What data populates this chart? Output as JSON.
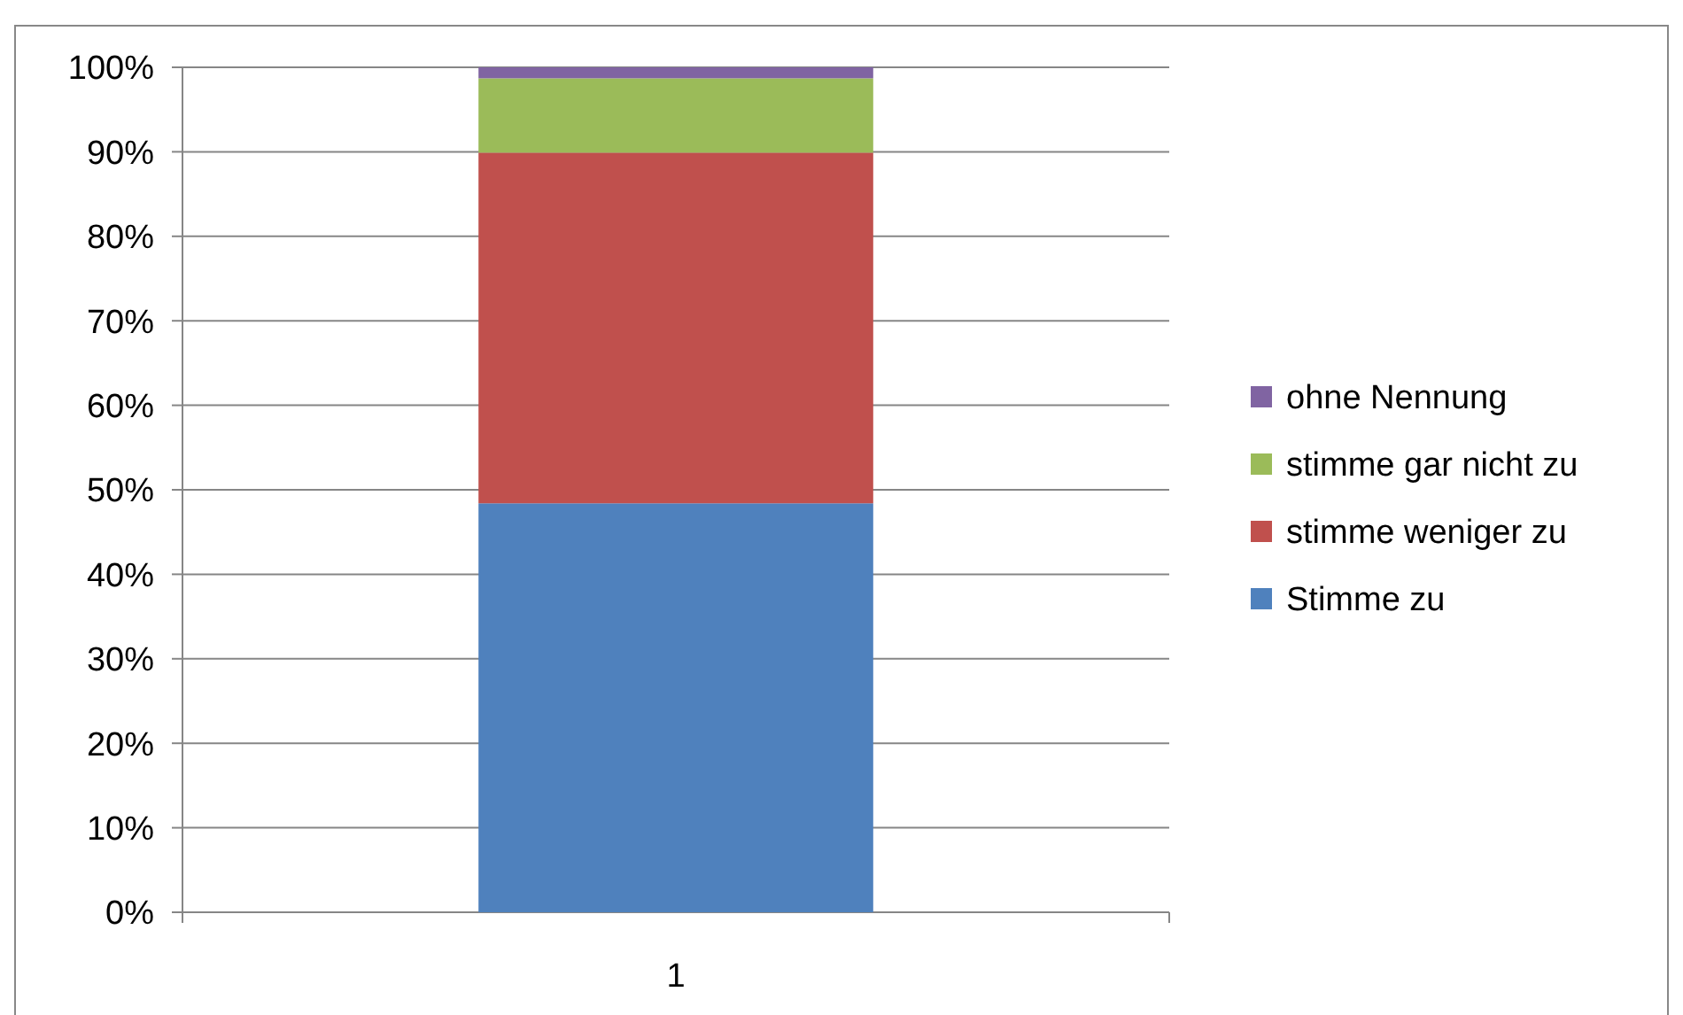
{
  "chart_data": {
    "type": "bar",
    "stacked": true,
    "categories": [
      "1"
    ],
    "series": [
      {
        "name": "Stimme zu",
        "color": "#4f81bd",
        "values": [
          48.4
        ]
      },
      {
        "name": "stimme weniger zu",
        "color": "#c0504d",
        "values": [
          41.5
        ]
      },
      {
        "name": "stimme gar nicht zu",
        "color": "#9bbb59",
        "values": [
          8.8
        ]
      },
      {
        "name": "ohne Nennung",
        "color": "#8064a2",
        "values": [
          1.3
        ]
      }
    ],
    "ylim": [
      0,
      100
    ],
    "yticks": [
      {
        "value": 0,
        "label": "0%"
      },
      {
        "value": 10,
        "label": "10%"
      },
      {
        "value": 20,
        "label": "20%"
      },
      {
        "value": 30,
        "label": "30%"
      },
      {
        "value": 40,
        "label": "40%"
      },
      {
        "value": 50,
        "label": "50%"
      },
      {
        "value": 60,
        "label": "60%"
      },
      {
        "value": 70,
        "label": "70%"
      },
      {
        "value": 80,
        "label": "80%"
      },
      {
        "value": 90,
        "label": "90%"
      },
      {
        "value": 100,
        "label": "100%"
      }
    ],
    "grid": "y",
    "legend": "right"
  }
}
